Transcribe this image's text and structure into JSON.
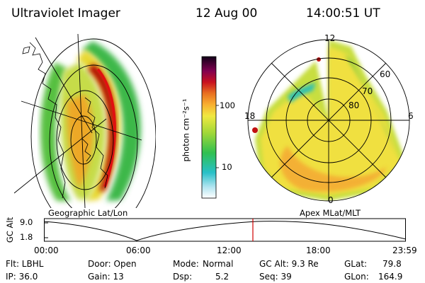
{
  "header": {
    "instrument": "Ultraviolet Imager",
    "date": "12 Aug 00",
    "time": "14:00:51 UT"
  },
  "left_panel": {
    "caption": "Geographic Lat/Lon"
  },
  "right_panel": {
    "caption": "Apex MLat/MLT",
    "mlt_labels": {
      "top": "12",
      "left": "18",
      "right": "6",
      "bottom": "0"
    },
    "mlat_labels": [
      "60",
      "70",
      "80"
    ]
  },
  "colorbar": {
    "unit": "photon cm⁻²s⁻¹",
    "ticks": [
      "100",
      "10"
    ]
  },
  "altitude_plot": {
    "ylabel": "GC Alt",
    "yticks": [
      "9.0",
      "1.8"
    ],
    "xticks": [
      "00:00",
      "06:00",
      "12:00",
      "18:00",
      "23:59"
    ],
    "current_time_marker": "14:00"
  },
  "info": {
    "flt": "Flt: LBHL",
    "ip": "IP: 36.0",
    "door": "Door: Open",
    "gain": "Gain: 13",
    "mode_label": "Mode:",
    "mode_value": "Normal",
    "dsp_label": "Dsp:",
    "dsp_value": "5.2",
    "gcalt": "GC Alt: 9.3 Re",
    "seq": "Seq: 39",
    "glat_label": "GLat:",
    "glat_value": "79.8",
    "glon_label": "GLon:",
    "glon_value": "164.9"
  },
  "colors": {
    "red_marker": "#d00000",
    "aurora_peak": "#b00000"
  }
}
